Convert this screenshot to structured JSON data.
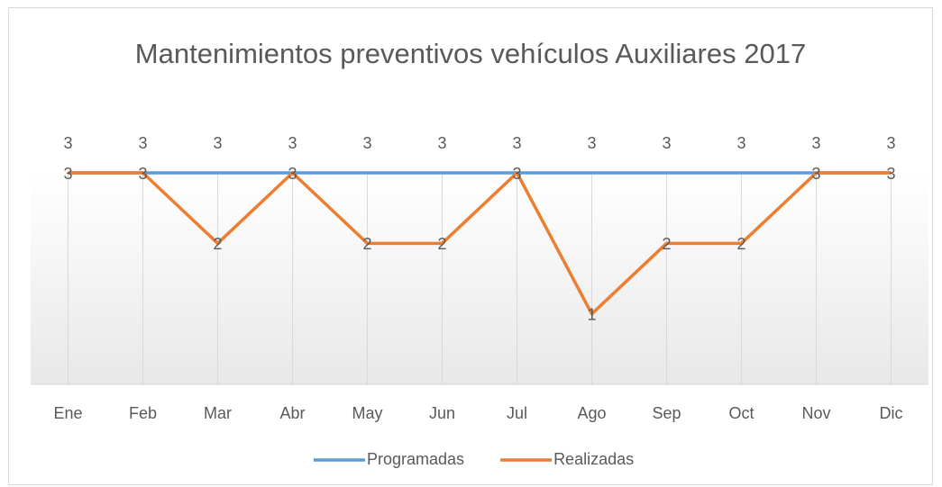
{
  "chart_data": {
    "type": "line",
    "title": "Mantenimientos preventivos vehículos Auxiliares 2017",
    "categories": [
      "Ene",
      "Feb",
      "Mar",
      "Abr",
      "May",
      "Jun",
      "Jul",
      "Ago",
      "Sep",
      "Oct",
      "Nov",
      "Dic"
    ],
    "series": [
      {
        "name": "Programadas",
        "color": "#5b9bd5",
        "values": [
          3,
          3,
          3,
          3,
          3,
          3,
          3,
          3,
          3,
          3,
          3,
          3
        ],
        "label_position": "above"
      },
      {
        "name": "Realizadas",
        "color": "#ed7d31",
        "values": [
          3,
          3,
          2,
          3,
          2,
          2,
          3,
          1,
          2,
          2,
          3,
          3
        ],
        "label_position": "center"
      }
    ],
    "ylim": [
      0,
      3
    ],
    "legend": "bottom"
  }
}
